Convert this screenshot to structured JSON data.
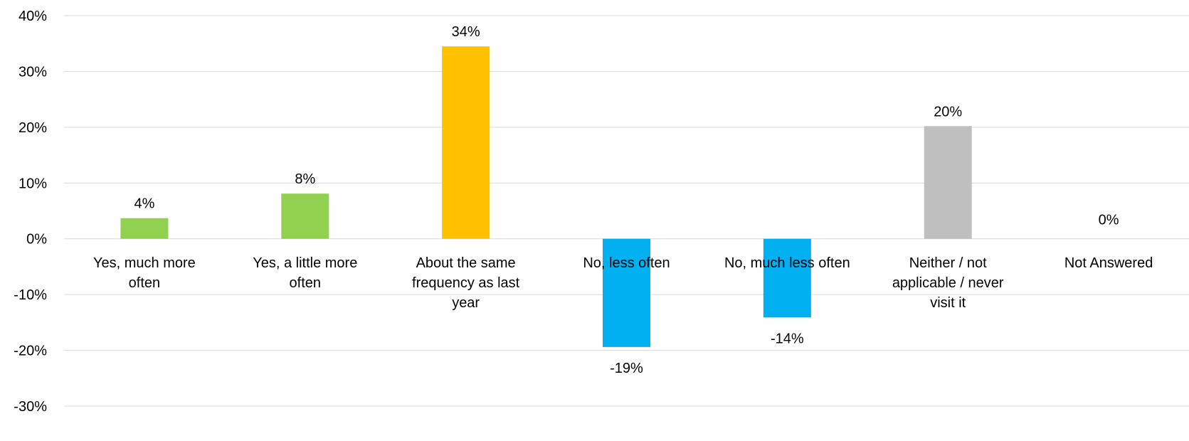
{
  "chart_data": {
    "type": "bar",
    "title": "",
    "xlabel": "",
    "ylabel": "",
    "ylim": [
      -30,
      40
    ],
    "yticks": [
      40,
      30,
      20,
      10,
      0,
      -10,
      -20,
      -30
    ],
    "ytick_labels": [
      "40%",
      "30%",
      "20%",
      "10%",
      "0%",
      "-10%",
      "-20%",
      "-30%"
    ],
    "grid": true,
    "legend": "none",
    "categories": [
      [
        "Yes, much more",
        "often"
      ],
      [
        "Yes, a little more",
        "often"
      ],
      [
        "About the same",
        "frequency as last",
        "year"
      ],
      [
        "No, less often"
      ],
      [
        "No, much less often"
      ],
      [
        "Neither / not",
        "applicable / never",
        "visit it"
      ],
      [
        "Not Answered"
      ]
    ],
    "values": [
      3.7,
      8.1,
      34.5,
      -19.4,
      -14.1,
      20.2,
      0
    ],
    "value_labels": [
      "4%",
      "8%",
      "34%",
      "-19%",
      "-14%",
      "20%",
      "0%"
    ],
    "colors": [
      "#92d050",
      "#92d050",
      "#ffc000",
      "#00b0f0",
      "#00b0f0",
      "#bfbfbf",
      "#bfbfbf"
    ],
    "gridline_color": "#d9d9d9"
  }
}
